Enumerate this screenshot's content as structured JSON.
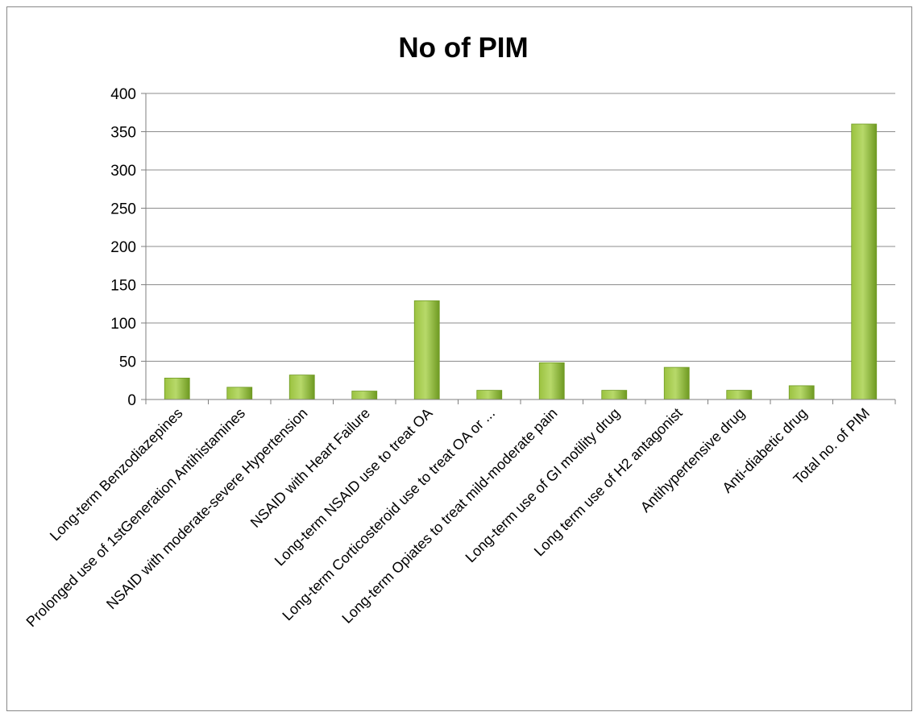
{
  "chart_data": {
    "type": "bar",
    "title": "No of PIM",
    "xlabel": "",
    "ylabel": "",
    "ylim": [
      0,
      400
    ],
    "yticks": [
      0,
      50,
      100,
      150,
      200,
      250,
      300,
      350,
      400
    ],
    "grid": true,
    "legend": "none",
    "categories": [
      "Long-term Benzodiazepines",
      "Prolonged use of 1stGeneration Antihistamines",
      "NSAID with moderate-severe Hypertension",
      "NSAID with Heart Failure",
      "Long-term NSAID use to treat OA",
      "Long-term Corticosteroid use to treat OA or ...",
      "Long-term Opiates to treat mild-moderate pain",
      "Long-term use of GI motility drug",
      "Long term use of H2 antagonist",
      "Antihypertensive drug",
      "Anti-diabetic drug",
      "Total no. of PIM"
    ],
    "series": [
      {
        "values": [
          28,
          16,
          32,
          11,
          129,
          12,
          48,
          12,
          42,
          12,
          18,
          360
        ]
      }
    ],
    "colors": {
      "bar_light": "#b7d96a",
      "bar_mid": "#9bc240",
      "bar_dark": "#6f9a22",
      "grid": "#8c8c8c",
      "axis": "#7f7f7f"
    }
  }
}
